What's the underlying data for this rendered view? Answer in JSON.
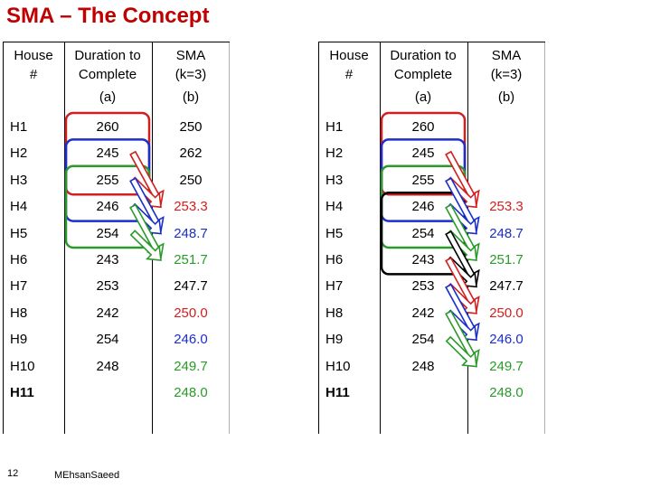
{
  "title": "SMA – The Concept",
  "colors": {
    "red": "#d21f1f",
    "blue": "#1b2fc9",
    "green": "#2a9a2a",
    "black": "#000000",
    "title": "#c00000"
  },
  "headers": {
    "house": "House #",
    "house_l1": "House",
    "house_l2": "#",
    "duration_l1": "Duration to",
    "duration_l2": "Complete",
    "sma_l1": "SMA",
    "sma_l2": "(k=3)",
    "sub_a": "(a)",
    "sub_b": "(b)"
  },
  "left_table": {
    "rows": [
      {
        "house": "H1",
        "duration": "260",
        "sma": "250"
      },
      {
        "house": "H2",
        "duration": "245",
        "sma": "262"
      },
      {
        "house": "H3",
        "duration": "255",
        "sma": "250"
      },
      {
        "house": "H4",
        "duration": "246",
        "sma": "253.3"
      },
      {
        "house": "H5",
        "duration": "254",
        "sma": "248.7"
      },
      {
        "house": "H6",
        "duration": "243",
        "sma": "251.7"
      },
      {
        "house": "H7",
        "duration": "253",
        "sma": "247.7"
      },
      {
        "house": "H8",
        "duration": "242",
        "sma": "250.0"
      },
      {
        "house": "H9",
        "duration": "254",
        "sma": "246.0"
      },
      {
        "house": "H10",
        "duration": "248",
        "sma": "249.7"
      },
      {
        "house": "H11",
        "duration": "",
        "sma": "248.0"
      }
    ]
  },
  "right_table": {
    "rows": [
      {
        "house": "H1",
        "duration": "260",
        "sma": ""
      },
      {
        "house": "H2",
        "duration": "245",
        "sma": ""
      },
      {
        "house": "H3",
        "duration": "255",
        "sma": ""
      },
      {
        "house": "H4",
        "duration": "246",
        "sma": "253.3"
      },
      {
        "house": "H5",
        "duration": "254",
        "sma": "248.7"
      },
      {
        "house": "H6",
        "duration": "243",
        "sma": "251.7"
      },
      {
        "house": "H7",
        "duration": "253",
        "sma": "247.7"
      },
      {
        "house": "H8",
        "duration": "242",
        "sma": "250.0"
      },
      {
        "house": "H9",
        "duration": "254",
        "sma": "246.0"
      },
      {
        "house": "H10",
        "duration": "248",
        "sma": "249.7"
      },
      {
        "house": "H11",
        "duration": "",
        "sma": "248.0"
      }
    ]
  },
  "footer": {
    "slide_number": "12",
    "author": "MEhsanSaeed"
  }
}
